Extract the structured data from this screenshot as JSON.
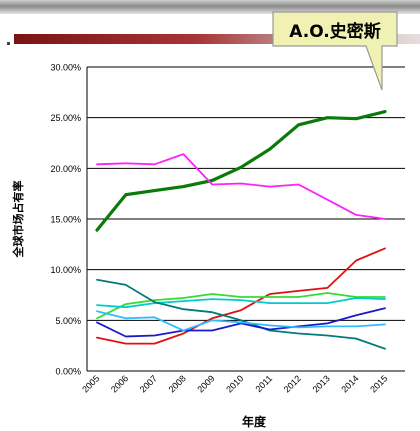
{
  "callout": {
    "text": "A.O.史密斯"
  },
  "chart_data": {
    "type": "line",
    "title": "",
    "xlabel": "年度",
    "ylabel": "全球市场占有率",
    "categories": [
      "2005",
      "2006",
      "2007",
      "2008",
      "2009",
      "2010",
      "2011",
      "2012",
      "2013",
      "2014",
      "2015"
    ],
    "ylim": [
      0,
      0.3
    ],
    "yticks": [
      "0.00%",
      "5.00%",
      "10.00%",
      "15.00%",
      "20.00%",
      "25.00%",
      "30.00%"
    ],
    "grid": true,
    "legend": "none",
    "series": [
      {
        "color": "#0a7a0a",
        "width": 3.2,
        "values": [
          0.139,
          0.174,
          0.178,
          0.182,
          0.188,
          0.201,
          0.219,
          0.243,
          0.25,
          0.249,
          0.256
        ]
      },
      {
        "color": "#ff1fff",
        "width": 1.8,
        "values": [
          0.204,
          0.205,
          0.204,
          0.214,
          0.184,
          0.185,
          0.182,
          0.184,
          0.169,
          0.154,
          0.15
        ]
      },
      {
        "color": "#e01010",
        "width": 1.8,
        "values": [
          0.033,
          0.027,
          0.027,
          0.037,
          0.052,
          0.06,
          0.076,
          0.079,
          0.082,
          0.109,
          0.121
        ]
      },
      {
        "color": "#33dd33",
        "width": 1.8,
        "values": [
          0.052,
          0.066,
          0.07,
          0.072,
          0.076,
          0.073,
          0.073,
          0.073,
          0.077,
          0.073,
          0.073
        ]
      },
      {
        "color": "#00cccc",
        "width": 1.8,
        "values": [
          0.065,
          0.063,
          0.067,
          0.069,
          0.071,
          0.07,
          0.067,
          0.067,
          0.067,
          0.072,
          0.071
        ]
      },
      {
        "color": "#007a7a",
        "width": 1.8,
        "values": [
          0.09,
          0.085,
          0.068,
          0.061,
          0.058,
          0.05,
          0.04,
          0.037,
          0.035,
          0.032,
          0.022
        ]
      },
      {
        "color": "#1a1acc",
        "width": 1.8,
        "values": [
          0.048,
          0.034,
          0.035,
          0.04,
          0.04,
          0.047,
          0.041,
          0.044,
          0.047,
          0.055,
          0.062
        ]
      },
      {
        "color": "#33bbff",
        "width": 1.8,
        "values": [
          0.059,
          0.052,
          0.053,
          0.04,
          0.05,
          0.048,
          0.045,
          0.043,
          0.044,
          0.044,
          0.046
        ]
      }
    ]
  }
}
